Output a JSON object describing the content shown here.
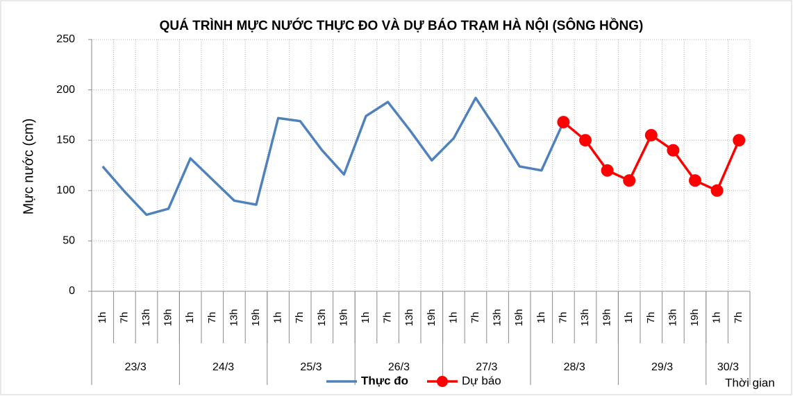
{
  "chart_data": {
    "type": "line",
    "title": "QUÁ TRÌNH MỰC NƯỚC THỰC ĐO VÀ DỰ BÁO TRẠM HÀ NỘI (SÔNG HỒNG)",
    "y_label": "Mực nước (cm)",
    "x_label": "Thời gian",
    "date_groups": [
      {
        "label": "23/3",
        "categories": [
          "1h",
          "7h",
          "13h",
          "19h"
        ]
      },
      {
        "label": "24/3",
        "categories": [
          "1h",
          "7h",
          "13h",
          "19h"
        ]
      },
      {
        "label": "25/3",
        "categories": [
          "1h",
          "7h",
          "13h",
          "19h"
        ]
      },
      {
        "label": "26/3",
        "categories": [
          "1h",
          "7h",
          "13h",
          "19h"
        ]
      },
      {
        "label": "27/3",
        "categories": [
          "1h",
          "7h",
          "13h",
          "19h"
        ]
      },
      {
        "label": "28/3",
        "categories": [
          "1h",
          "7h",
          "13h",
          "19h"
        ]
      },
      {
        "label": "29/3",
        "categories": [
          "1h",
          "7h",
          "13h",
          "19h"
        ]
      },
      {
        "label": "30/3",
        "categories": [
          "1h",
          "7h"
        ]
      }
    ],
    "series": [
      {
        "name": "Thực đo",
        "color": "#4f81bd",
        "markers": false,
        "values": [
          124,
          99,
          76,
          82,
          132,
          111,
          90,
          86,
          172,
          169,
          140,
          116,
          174,
          188,
          160,
          130,
          152,
          192,
          159,
          124,
          120,
          168,
          null,
          null,
          null,
          null,
          null,
          null,
          null,
          null
        ]
      },
      {
        "name": "Dự báo",
        "color": "#ff0000",
        "markers": true,
        "values": [
          null,
          null,
          null,
          null,
          null,
          null,
          null,
          null,
          null,
          null,
          null,
          null,
          null,
          null,
          null,
          null,
          null,
          null,
          null,
          null,
          null,
          168,
          150,
          120,
          110,
          155,
          140,
          110,
          100,
          150
        ]
      }
    ],
    "ylim": [
      0,
      250
    ],
    "yticks": [
      0,
      50,
      100,
      150,
      200,
      250
    ],
    "grid": true
  }
}
